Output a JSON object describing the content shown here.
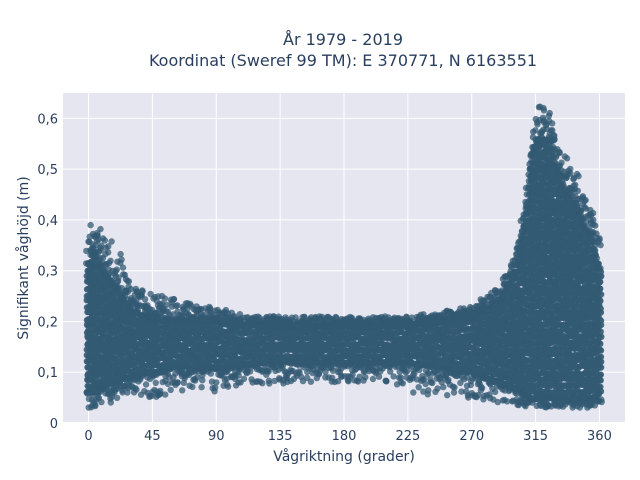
{
  "chart_data": {
    "type": "scatter",
    "title_line1": "År 1979 - 2019",
    "title_line2": "Koordinat (Sweref 99 TM): E 370771, N 6163551",
    "xlabel": "Vågriktning (grader)",
    "ylabel": "Signifikant våghöjd (m)",
    "xlim": [
      -18,
      378
    ],
    "ylim": [
      0,
      0.65
    ],
    "x_ticks": [
      0,
      45,
      90,
      135,
      180,
      225,
      270,
      315,
      360
    ],
    "x_tick_labels": [
      "0",
      "45",
      "90",
      "135",
      "180",
      "225",
      "270",
      "315",
      "360"
    ],
    "y_ticks": [
      0,
      0.1,
      0.2,
      0.3,
      0.4,
      0.5,
      0.6
    ],
    "y_tick_labels": [
      "0",
      "0,1",
      "0,2",
      "0,3",
      "0,4",
      "0,5",
      "0,6"
    ],
    "grid": true,
    "marker_color": "#335a73",
    "background_color": "#e5e6f0",
    "envelope": {
      "direction_deg": [
        0,
        3,
        5,
        10,
        15,
        20,
        25,
        30,
        40,
        50,
        60,
        75,
        90,
        100,
        120,
        135,
        150,
        180,
        200,
        225,
        250,
        270,
        280,
        290,
        300,
        305,
        310,
        312,
        315,
        320,
        325,
        330,
        335,
        340,
        345,
        350,
        355,
        360
      ],
      "max_height_m": [
        0.38,
        0.44,
        0.41,
        0.38,
        0.37,
        0.36,
        0.31,
        0.27,
        0.26,
        0.25,
        0.25,
        0.23,
        0.23,
        0.22,
        0.21,
        0.21,
        0.21,
        0.21,
        0.21,
        0.21,
        0.22,
        0.23,
        0.25,
        0.27,
        0.33,
        0.4,
        0.5,
        0.58,
        0.62,
        0.63,
        0.61,
        0.56,
        0.53,
        0.52,
        0.5,
        0.44,
        0.44,
        0.37
      ],
      "min_height_m": [
        0.03,
        0.03,
        0.03,
        0.04,
        0.04,
        0.04,
        0.05,
        0.05,
        0.05,
        0.05,
        0.06,
        0.07,
        0.06,
        0.07,
        0.08,
        0.07,
        0.08,
        0.08,
        0.08,
        0.06,
        0.05,
        0.05,
        0.04,
        0.04,
        0.04,
        0.03,
        0.03,
        0.03,
        0.03,
        0.03,
        0.03,
        0.03,
        0.03,
        0.03,
        0.03,
        0.03,
        0.03,
        0.04
      ],
      "dense_band_low_m": [
        0.06,
        0.06,
        0.07,
        0.07,
        0.08,
        0.08,
        0.09,
        0.09,
        0.1,
        0.1,
        0.11,
        0.11,
        0.11,
        0.11,
        0.12,
        0.12,
        0.12,
        0.12,
        0.12,
        0.12,
        0.11,
        0.1,
        0.09,
        0.08,
        0.07,
        0.06,
        0.05,
        0.05,
        0.05,
        0.05,
        0.05,
        0.05,
        0.05,
        0.05,
        0.05,
        0.05,
        0.05,
        0.06
      ],
      "dense_band_high_m": [
        0.3,
        0.34,
        0.33,
        0.3,
        0.28,
        0.26,
        0.24,
        0.22,
        0.21,
        0.2,
        0.2,
        0.2,
        0.2,
        0.19,
        0.19,
        0.19,
        0.19,
        0.19,
        0.19,
        0.19,
        0.2,
        0.21,
        0.22,
        0.24,
        0.29,
        0.35,
        0.45,
        0.52,
        0.55,
        0.56,
        0.55,
        0.5,
        0.46,
        0.44,
        0.42,
        0.38,
        0.36,
        0.3
      ]
    }
  }
}
